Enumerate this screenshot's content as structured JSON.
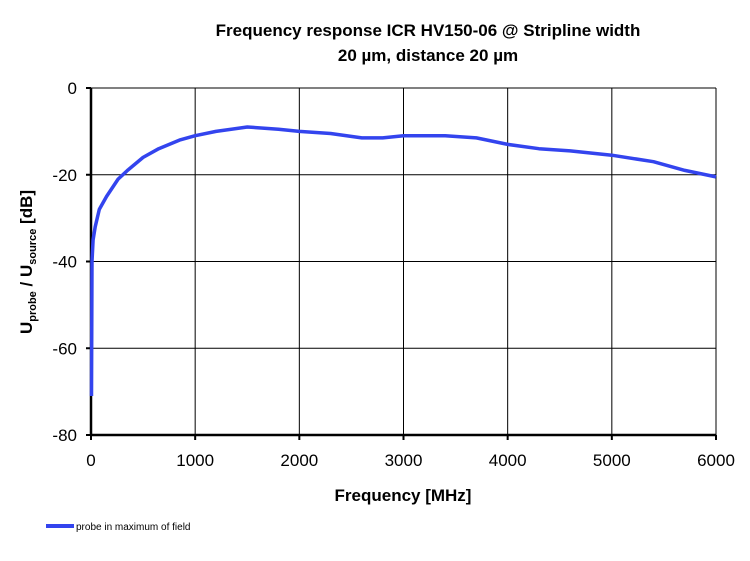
{
  "chart_data": {
    "type": "line",
    "title_line1": "Frequency response ICR HV150-06 @ Stripline  width",
    "title_line2": "20 µm, distance 20 µm",
    "xlabel": "Frequency [MHz]",
    "ylabel_main": "U",
    "ylabel_sub1": "probe",
    "ylabel_mid": " / U",
    "ylabel_sub2": "source",
    "ylabel_unit": " [dB]",
    "xlim": [
      0,
      6000
    ],
    "ylim": [
      -80,
      0
    ],
    "xticks": [
      0,
      1000,
      2000,
      3000,
      4000,
      5000,
      6000
    ],
    "yticks": [
      0,
      -20,
      -40,
      -60,
      -80
    ],
    "grid": true,
    "legend_position": "bottom-left",
    "series": [
      {
        "name": "probe in maximum of field",
        "color": "#3344ee",
        "x": [
          5,
          10,
          20,
          40,
          80,
          150,
          260,
          350,
          500,
          650,
          850,
          1000,
          1200,
          1500,
          1800,
          2000,
          2300,
          2600,
          2800,
          3000,
          3400,
          3700,
          4000,
          4300,
          4600,
          5000,
          5400,
          5700,
          6000
        ],
        "y": [
          -71,
          -40,
          -35,
          -32,
          -28,
          -25,
          -21,
          -19,
          -16,
          -14,
          -12,
          -11,
          -10,
          -9,
          -9.5,
          -10,
          -10.5,
          -11.5,
          -11.5,
          -11,
          -11,
          -11.5,
          -13,
          -14,
          -14.5,
          -15.5,
          -17,
          -19,
          -20.5
        ]
      }
    ]
  }
}
